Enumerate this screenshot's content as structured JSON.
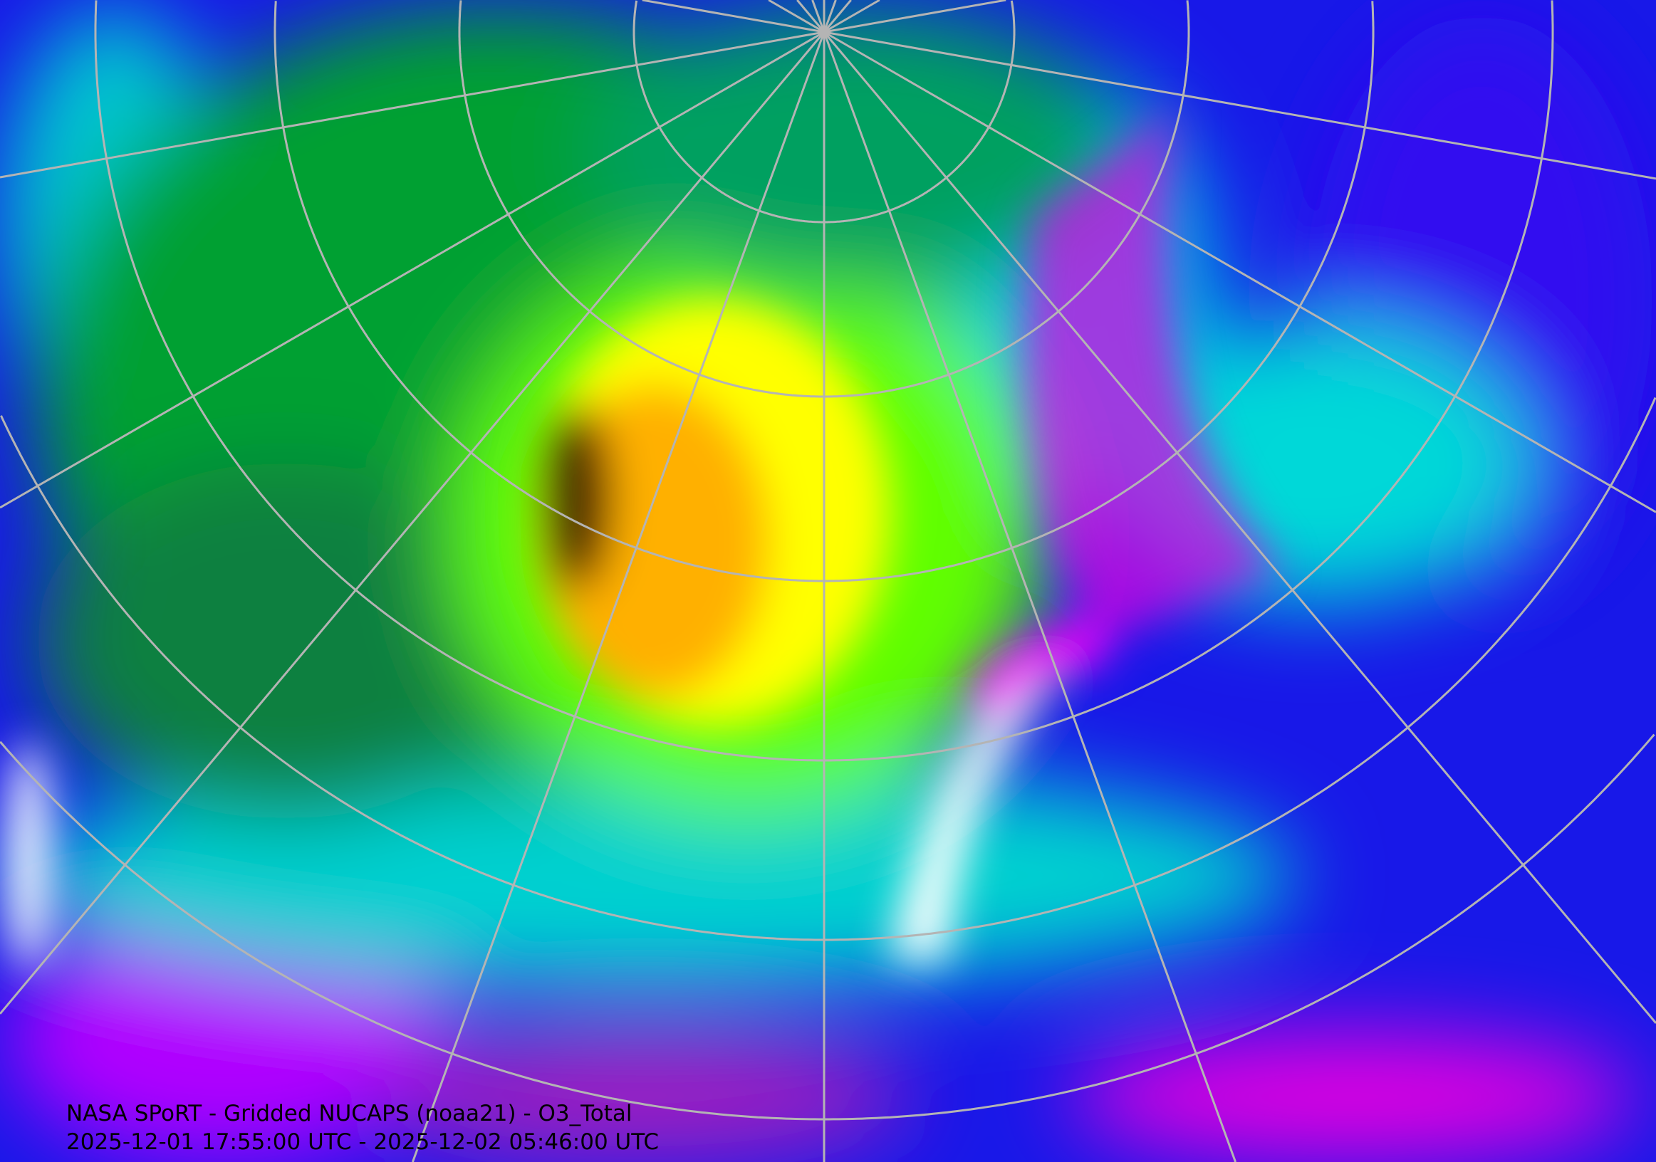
{
  "map": {
    "projection": "north-polar-stereographic",
    "field": "O3_Total",
    "graticule_color": "#b4b4b4",
    "coastline_color": "#000000",
    "colors": {
      "lowest": "#ffffff",
      "low": "#ff00ff",
      "mid_low": "#8000ff",
      "blue": "#0000ff",
      "cyan": "#00e0e0",
      "green": "#00a000",
      "bright_green": "#40ff00",
      "yellow": "#ffff00",
      "orange": "#ffb000",
      "highest": "#402000"
    }
  },
  "caption": {
    "line1": "NASA SPoRT - Gridded NUCAPS (noaa21) - O3_Total",
    "line2": "2025-12-01 17:55:00 UTC - 2025-12-02 05:46:00 UTC"
  }
}
